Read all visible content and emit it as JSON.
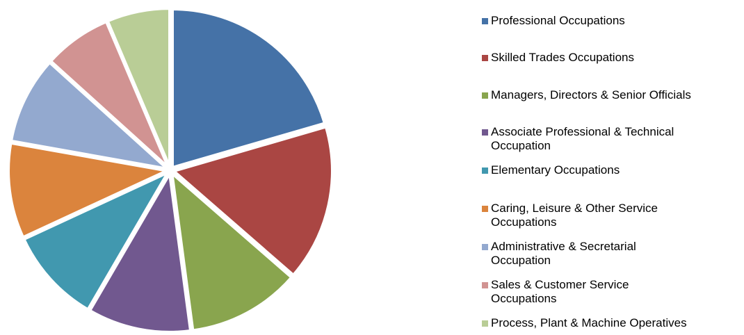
{
  "chart_data": {
    "type": "pie",
    "categories": [
      "Professional Occupations",
      "Skilled Trades Occupations",
      "Managers, Directors & Senior Officials",
      "Associate Professional & Technical Occupation",
      "Elementary Occupations",
      "Caring, Leisure & Other Service Occupations",
      "Administrative & Secretarial Occupation",
      "Sales & Customer Service Occupations",
      "Process, Plant & Machine Operatives"
    ],
    "values": [
      20.5,
      15.9,
      11.5,
      10.5,
      9.7,
      9.7,
      8.9,
      6.9,
      6.4
    ],
    "colors": [
      "#4572a7",
      "#aa4643",
      "#89a54e",
      "#71588f",
      "#4198af",
      "#db843d",
      "#93a9cf",
      "#d19392",
      "#b9cd96"
    ],
    "legend": "right"
  }
}
